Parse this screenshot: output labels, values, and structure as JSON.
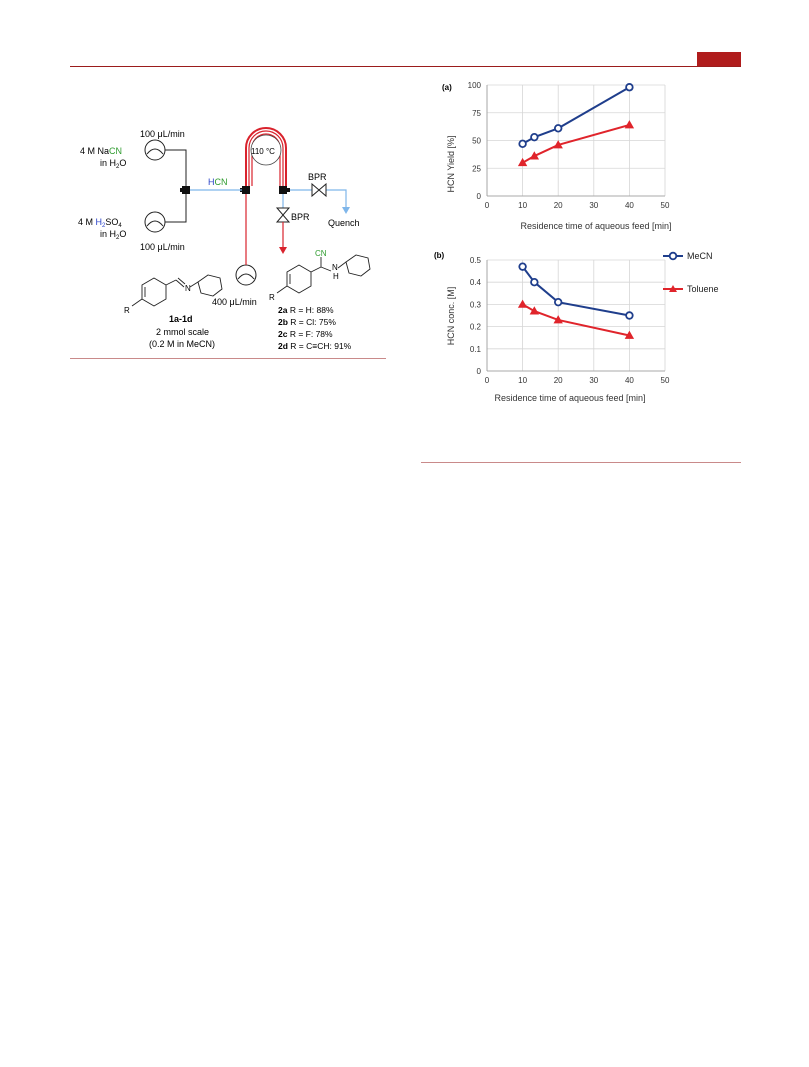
{
  "scheme": {
    "flow_left_top": "100 μL/min",
    "nacn_reagent": "4 M NaCN",
    "nacn_solvent": "in H2O",
    "hcn_label": "HCN",
    "temperature": "110 °C",
    "bpr_top": "BPR",
    "bpr_bottom": "BPR",
    "quench": "Quench",
    "h2so4_reagent": "4 M H2SO4",
    "h2so4_solvent": "in H2O",
    "flow_left_bottom": "100 μL/min",
    "flow_imine": "400 μL/min",
    "imine_label": "1a-1d",
    "scale": "2 mmol scale",
    "concentration": "(0.2 M in MeCN)",
    "product_cn": "CN",
    "product_nh": "N",
    "product_h": "H",
    "r_label": "R",
    "products": [
      {
        "id": "2a",
        "text": "R = H: 88%"
      },
      {
        "id": "2b",
        "text": "R = Cl: 75%"
      },
      {
        "id": "2c",
        "text": "R = F: 78%"
      },
      {
        "id": "2d",
        "text": "R = C≡CH: 91%"
      }
    ],
    "colors": {
      "cyanide": "#2e9b2e",
      "hydrogen": "#2b43c8",
      "line_red": "#d9232d",
      "line_blue": "#7fb6ea"
    }
  },
  "panel_a_label": "(a)",
  "panel_b_label": "(b)",
  "chart_data": [
    {
      "type": "line",
      "xlabel": "Residence time of aqueous feed [min]",
      "ylabel": "HCN Yield [%]",
      "xlim": [
        0,
        50
      ],
      "ylim": [
        0,
        100
      ],
      "xticks": [
        "0",
        "10",
        "20",
        "30",
        "40",
        "50"
      ],
      "yticks": [
        "0",
        "25",
        "50",
        "75",
        "100"
      ],
      "grid": true,
      "legend": "none",
      "series": [
        {
          "x": [
            10,
            13.3,
            20,
            40
          ],
          "values": [
            47,
            53,
            61,
            98
          ],
          "color": "#1f3e8c",
          "marker": "circle"
        },
        {
          "x": [
            10,
            13.3,
            20,
            40
          ],
          "values": [
            30,
            36,
            46,
            64
          ],
          "color": "#e0242b",
          "marker": "triangle"
        }
      ]
    },
    {
      "type": "line",
      "xlabel": "Residence time of aqueous feed [min]",
      "ylabel": "HCN conc. [M]",
      "xlim": [
        0,
        50
      ],
      "ylim": [
        0,
        0.5
      ],
      "xticks": [
        "0",
        "10",
        "20",
        "30",
        "40",
        "50"
      ],
      "yticks": [
        "0",
        "0.1",
        "0.2",
        "0.3",
        "0.4",
        "0.5"
      ],
      "grid": true,
      "legend": "right",
      "series": [
        {
          "name": "MeCN",
          "x": [
            10,
            13.3,
            20,
            40
          ],
          "values": [
            0.47,
            0.4,
            0.31,
            0.25
          ],
          "color": "#1f3e8c",
          "marker": "circle"
        },
        {
          "name": "Toluene",
          "x": [
            10,
            13.3,
            20,
            40
          ],
          "values": [
            0.3,
            0.27,
            0.23,
            0.16
          ],
          "color": "#e0242b",
          "marker": "triangle"
        }
      ]
    }
  ]
}
